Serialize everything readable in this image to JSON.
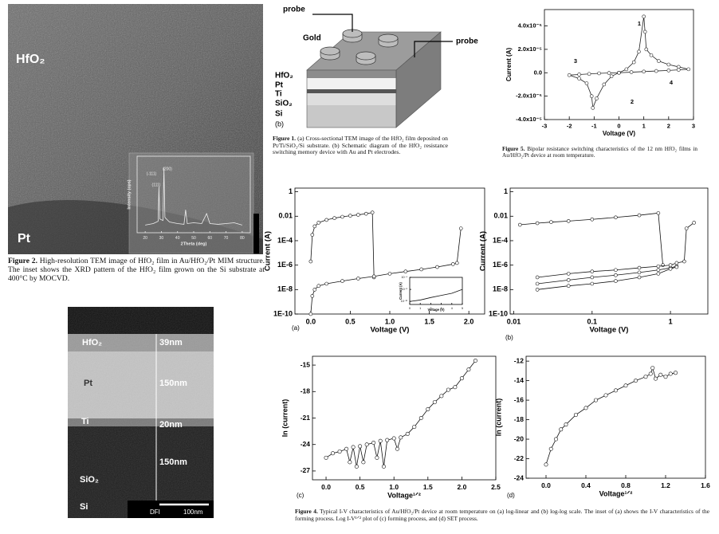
{
  "tem_image": {
    "labels": [
      "HfO₂",
      "Pt"
    ]
  },
  "figure2_caption": {
    "label": "Figure 2.",
    "text": "High-resolution TEM image of HfO₂ film in Au/HfO₂/Pt MIM structure. The inset shows the XRD pattern of the HfO₂ film grown on the Si substrate at 400°C by MOCVD."
  },
  "cross_section": {
    "layers": [
      "HfO₂",
      "Pt",
      "Ti",
      "SiO₂",
      "Si"
    ],
    "thicknesses": [
      "39nm",
      "150nm",
      "20nm",
      "150nm"
    ],
    "scale_bar": {
      "detector": "DFI",
      "length": "100nm"
    }
  },
  "schematic": {
    "probe_top": "probe",
    "gold": "Gold",
    "probe_right": "probe",
    "layers": [
      "HfO₂",
      "Pt",
      "Ti",
      "SiO₂",
      "Si"
    ],
    "panel": "(b)"
  },
  "figure1_caption": {
    "label": "Figure 1.",
    "text": "(a) Cross-sectional TEM image of the HfO₂ film deposited on Pt/Ti/SiO₂/Si substrate. (b) Schematic diagram of the HfO₂ resistance switching memory device with Au and Pt electrodes."
  },
  "figure5_caption": {
    "label": "Figure 5.",
    "text": "Bipolar resistance switching characteristics of the 12 nm HfO₂ films in Au/HfO₂/Pt device at room temperature."
  },
  "figure4_caption": {
    "label": "Figure 4.",
    "text": "Typical I-V characteristics of Au/HfO₂/Pt device at room temperature on (a) log-linear and (b) log-log scale. The inset of (a) shows the I-V characteristics of the forming process. Log I-V¹ᐟ² plot of (c) forming process, and (d) SET process."
  },
  "chart_data": [
    {
      "type": "line",
      "xlabel": "Voltage (V)",
      "ylabel": "Current (A)",
      "annotations": [
        "1",
        "2",
        "3",
        "4"
      ],
      "xlim": [
        -3,
        3
      ],
      "xticks": [
        -3,
        -2,
        -1,
        0,
        1,
        2,
        3
      ],
      "ylim": [
        -4e-05,
        5.4e-05
      ],
      "yticks": [
        {
          "value": 4e-05,
          "label": "4.0x10⁻⁵"
        },
        {
          "value": 2e-05,
          "label": "2.0x10⁻⁵"
        },
        {
          "value": 0,
          "label": "0.0"
        },
        {
          "value": -2e-05,
          "label": "-2.0x10⁻⁵"
        },
        {
          "value": -4e-05,
          "label": "-4.0x10⁻⁵"
        }
      ],
      "series": [
        {
          "color": "#222",
          "x": [
            0,
            0.3,
            0.6,
            0.8,
            1.0,
            1.05,
            1.1,
            1.3,
            1.6,
            2.0,
            2.4,
            2.8,
            2.4,
            2.0,
            1.5,
            1.0,
            0.5,
            0,
            -0.3,
            -0.6,
            -0.9,
            -1.05,
            -1.1,
            -1.3,
            -1.6,
            -2.0,
            -1.6,
            -1.2,
            -0.8,
            -0.4,
            0
          ],
          "values": [
            0,
            3e-06,
            9e-06,
            1.8e-05,
            4.8e-05,
            3.5e-05,
            2e-05,
            1.5e-05,
            1e-05,
            7e-06,
            5e-06,
            3e-06,
            2.5e-06,
            2e-06,
            1.5e-06,
            1e-06,
            5e-07,
            0,
            -3e-06,
            -1e-05,
            -2.2e-05,
            -3e-05,
            -2e-05,
            -9e-06,
            -5e-06,
            -2e-06,
            -1.5e-06,
            -1e-06,
            -5e-07,
            -2e-07,
            0
          ]
        }
      ]
    },
    {
      "type": "line",
      "panel": "(a)",
      "xlabel": "Voltage (V)",
      "ylabel": "Current (A)",
      "ylog": true,
      "xlim": [
        -0.2,
        2.2
      ],
      "xticks": [
        {
          "value": 0,
          "label": "0.0"
        },
        0.5,
        {
          "value": 1,
          "label": "1.0"
        },
        1.5,
        {
          "value": 2,
          "label": "2.0"
        }
      ],
      "ylim": [
        1e-10,
        2
      ],
      "yticks": [
        1,
        0.01,
        {
          "value": 0.0001,
          "label": "1E-4"
        },
        {
          "value": 1e-06,
          "label": "1E-6"
        },
        {
          "value": 1e-08,
          "label": "1E-8"
        },
        {
          "value": 1e-10,
          "label": "1E-10"
        }
      ],
      "series": [
        {
          "color": "#111",
          "x": [
            0,
            0.02,
            0.05,
            0.1,
            0.2,
            0.3,
            0.4,
            0.5,
            0.6,
            0.7,
            0.78,
            0.8
          ],
          "values": [
            2e-06,
            0.0003,
            0.0015,
            0.003,
            0.005,
            0.007,
            0.009,
            0.011,
            0.013,
            0.016,
            0.02,
            1e-07
          ]
        },
        {
          "color": "#111",
          "x": [
            0,
            0.02,
            0.05,
            0.1,
            0.2,
            0.4,
            0.6,
            0.8,
            1.0,
            1.2,
            1.4,
            1.6,
            1.8,
            1.85,
            1.9
          ],
          "values": [
            1e-10,
            3e-09,
            1e-08,
            2e-08,
            3e-08,
            5e-08,
            8e-08,
            1.2e-07,
            2e-07,
            3e-07,
            4.5e-07,
            7e-07,
            1.2e-06,
            1.5e-06,
            0.001
          ]
        }
      ]
    },
    {
      "type": "line",
      "panel": "(b)",
      "xlabel": "Voltage (V)",
      "ylabel": "Current (A)",
      "xlog": true,
      "ylog": true,
      "xlim": [
        0.009,
        3
      ],
      "xticks": [
        0.01,
        0.1,
        1
      ],
      "ylim": [
        1e-10,
        2
      ],
      "yticks": [
        1,
        0.01,
        {
          "value": 0.0001,
          "label": "1E-4"
        },
        {
          "value": 1e-06,
          "label": "1E-6"
        },
        {
          "value": 1e-08,
          "label": "1E-8"
        },
        {
          "value": 1e-10,
          "label": "1E-10"
        }
      ],
      "series": [
        {
          "color": "#111",
          "x": [
            0.012,
            0.02,
            0.03,
            0.05,
            0.1,
            0.2,
            0.4,
            0.7,
            0.8
          ],
          "values": [
            0.002,
            0.0027,
            0.0033,
            0.004,
            0.0055,
            0.008,
            0.012,
            0.018,
            1e-06
          ]
        },
        {
          "color": "#111",
          "x": [
            0.02,
            0.05,
            0.1,
            0.2,
            0.4,
            0.7,
            1,
            1.2,
            1.5,
            1.6,
            2
          ],
          "values": [
            1e-07,
            2e-07,
            3e-07,
            4e-07,
            6e-07,
            8e-07,
            1e-06,
            1.5e-06,
            2e-06,
            0.001,
            0.003
          ]
        },
        {
          "color": "#111",
          "x": [
            0.02,
            0.05,
            0.1,
            0.2,
            0.4,
            0.7,
            1,
            1.2
          ],
          "values": [
            3e-08,
            6e-08,
            1e-07,
            1.5e-07,
            2.5e-07,
            4e-07,
            6e-07,
            8e-07
          ]
        },
        {
          "color": "#111",
          "x": [
            0.02,
            0.05,
            0.1,
            0.2,
            0.4,
            0.7,
            1,
            1.2
          ],
          "values": [
            1e-08,
            2e-08,
            3e-08,
            5e-08,
            1e-07,
            2e-07,
            5e-07,
            7e-07
          ]
        }
      ]
    },
    {
      "type": "line",
      "panel": "(c)",
      "xlabel": "Voltage¹ᐟ²",
      "ylabel": "ln (current)",
      "xlim": [
        -0.2,
        2.5
      ],
      "xticks": [
        {
          "value": 0,
          "label": "0.0"
        },
        0.5,
        {
          "value": 1,
          "label": "1.0"
        },
        1.5,
        {
          "value": 2,
          "label": "2.0"
        },
        2.5
      ],
      "ylim": [
        -28,
        -14
      ],
      "yticks": [
        -15,
        -18,
        -21,
        -24,
        -27
      ],
      "series": [
        {
          "color": "#111",
          "x": [
            0,
            0.1,
            0.2,
            0.3,
            0.35,
            0.4,
            0.45,
            0.5,
            0.55,
            0.6,
            0.7,
            0.75,
            0.8,
            0.85,
            0.9,
            1.0,
            1.05,
            1.1,
            1.2,
            1.3,
            1.4,
            1.5,
            1.6,
            1.7,
            1.8,
            1.9,
            2.0,
            2.1,
            2.2
          ],
          "values": [
            -25.5,
            -25,
            -24.8,
            -24.5,
            -26,
            -24.3,
            -26.5,
            -24.2,
            -26,
            -24,
            -23.8,
            -25.5,
            -23.6,
            -26.5,
            -23.5,
            -23.3,
            -24.5,
            -23.2,
            -22.8,
            -22,
            -21,
            -20,
            -19.2,
            -18.5,
            -17.8,
            -17.5,
            -16.5,
            -15.5,
            -14.5
          ]
        }
      ]
    },
    {
      "type": "line",
      "panel": "(d)",
      "xlabel": "Voltage¹ᐟ²",
      "ylabel": "ln (current)",
      "xlim": [
        -0.2,
        1.6
      ],
      "xticks": [
        {
          "value": 0,
          "label": "0.0"
        },
        0.4,
        0.8,
        1.2,
        1.6
      ],
      "ylim": [
        -24,
        -11.5
      ],
      "yticks": [
        -12,
        -14,
        -16,
        -18,
        -20,
        -22,
        -24
      ],
      "series": [
        {
          "color": "#111",
          "x": [
            0,
            0.05,
            0.1,
            0.15,
            0.2,
            0.3,
            0.4,
            0.5,
            0.6,
            0.7,
            0.8,
            0.9,
            1.0,
            1.05,
            1.07,
            1.1,
            1.15,
            1.2,
            1.25,
            1.3
          ],
          "values": [
            -22.6,
            -21,
            -20,
            -19,
            -18.5,
            -17.5,
            -16.8,
            -16,
            -15.5,
            -15,
            -14.5,
            -14,
            -13.6,
            -13.3,
            -12.7,
            -13.8,
            -13.4,
            -13.6,
            -13.3,
            -13.2
          ]
        }
      ]
    },
    {
      "type": "line",
      "xlabel": "2Theta (deg)",
      "ylabel": "Intensity (cps)",
      "annotations": [
        "(-111)",
        "(111)",
        "(200)"
      ],
      "xlim": [
        15,
        85
      ],
      "xticks": [
        20,
        30,
        40,
        50,
        60,
        70,
        80
      ],
      "ylim": [
        0,
        100
      ],
      "series": [
        {
          "color": "#eee",
          "x": [
            20,
            25,
            28,
            28.5,
            29,
            31,
            31.6,
            32.2,
            35,
            40,
            44,
            45,
            46,
            50,
            55,
            58,
            60,
            65,
            70,
            75,
            80
          ],
          "values": [
            10,
            12,
            15,
            60,
            18,
            16,
            85,
            20,
            14,
            12,
            11,
            30,
            12,
            13,
            12,
            25,
            12,
            11,
            12,
            13,
            10
          ]
        }
      ]
    },
    {
      "type": "line",
      "xlabel": "Voltage (V)",
      "ylabel": "Current (A)",
      "ylog": true,
      "xlim": [
        0,
        5
      ],
      "xticks": [
        0,
        1,
        2,
        3,
        4,
        5
      ],
      "ylim": [
        1e-13,
        0.0001
      ],
      "yticks": [
        {
          "value": 0.0001,
          "label": "10⁻⁴"
        },
        {
          "value": 1e-08,
          "label": "10⁻⁸"
        },
        {
          "value": 1e-12,
          "label": "10⁻¹²"
        }
      ],
      "series": [
        {
          "color": "#111",
          "x": [
            0,
            1,
            2,
            3,
            4,
            5
          ],
          "values": [
            1e-12,
            3e-12,
            2e-11,
            1e-10,
            5e-10,
            1e-08
          ]
        }
      ]
    }
  ]
}
